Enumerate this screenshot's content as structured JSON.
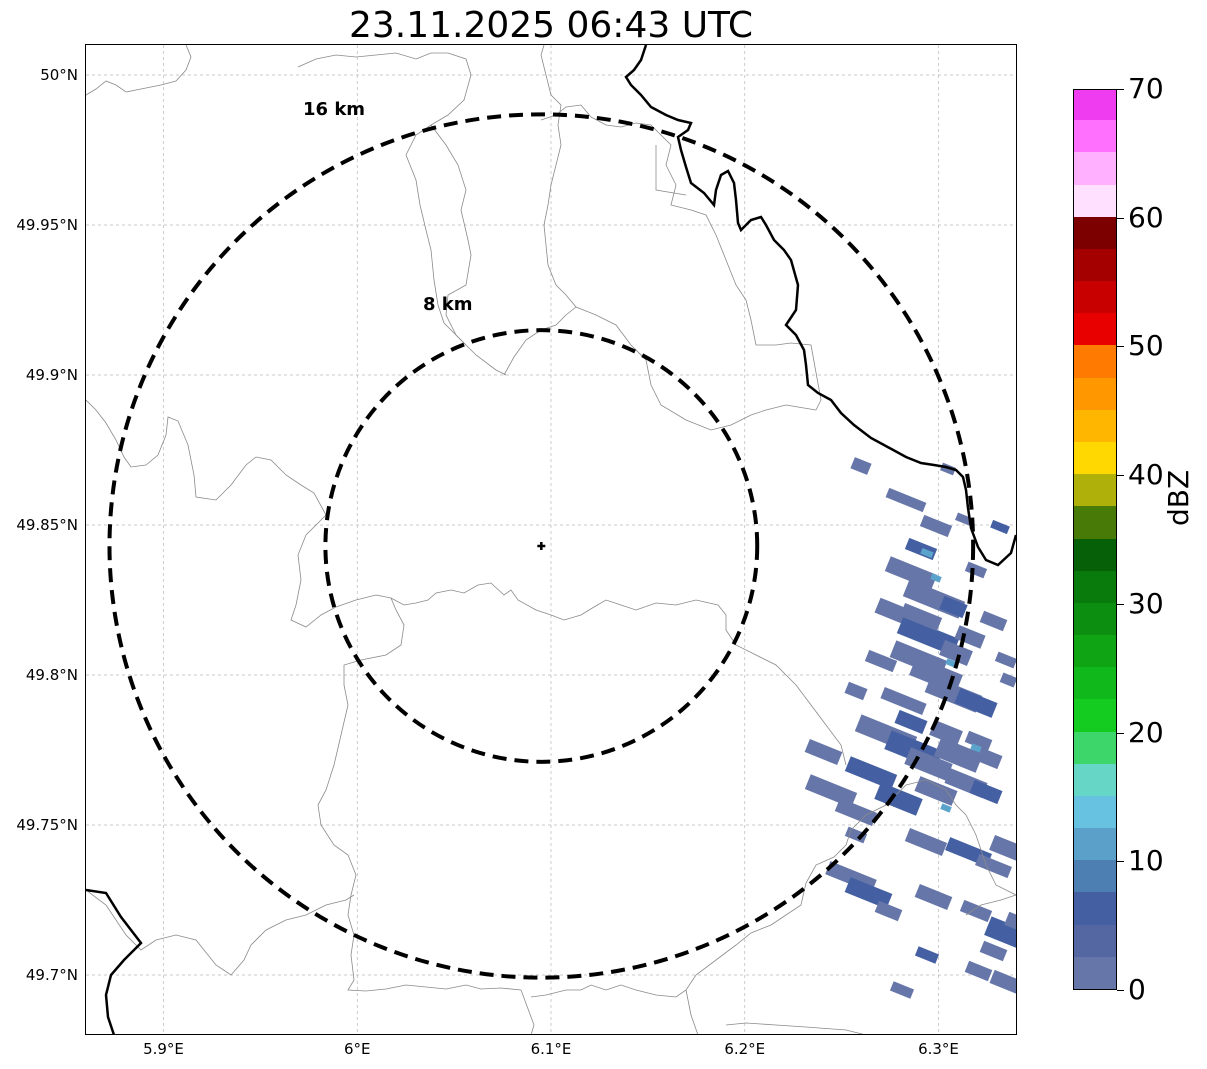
{
  "title": "23.11.2025 06:43 UTC",
  "map": {
    "lon_range": [
      5.86,
      6.34
    ],
    "lat_range": [
      49.68,
      50.01
    ],
    "lat_ticks": [
      {
        "value": 50.0,
        "label": "50°N"
      },
      {
        "value": 49.95,
        "label": "49.95°N"
      },
      {
        "value": 49.9,
        "label": "49.9°N"
      },
      {
        "value": 49.85,
        "label": "49.85°N"
      },
      {
        "value": 49.8,
        "label": "49.8°N"
      },
      {
        "value": 49.75,
        "label": "49.75°N"
      },
      {
        "value": 49.7,
        "label": "49.7°N"
      }
    ],
    "lon_ticks": [
      {
        "value": 5.9,
        "label": "5.9°E"
      },
      {
        "value": 6.0,
        "label": "6°E"
      },
      {
        "value": 6.1,
        "label": "6.1°E"
      },
      {
        "value": 6.2,
        "label": "6.2°E"
      },
      {
        "value": 6.3,
        "label": "6.3°E"
      }
    ],
    "gridlines": true,
    "radar_site": {
      "lon": 6.095,
      "lat": 49.843,
      "marker": "plus-icon"
    },
    "range_rings": [
      {
        "radius_km": 8,
        "label": "8 km"
      },
      {
        "radius_km": 16,
        "label": "16 km"
      }
    ],
    "echo_color_lightest": "#6676a8",
    "echo_color_darker": "#4560a2",
    "echo_color_cyan": "#5aa3cb"
  },
  "colorbar": {
    "label": "dBZ",
    "min": 0,
    "max": 70,
    "step": 2.5,
    "tick_labels": [
      {
        "value": 0,
        "label": "0"
      },
      {
        "value": 10,
        "label": "10"
      },
      {
        "value": 20,
        "label": "20"
      },
      {
        "value": 30,
        "label": "30"
      },
      {
        "value": 40,
        "label": "40"
      },
      {
        "value": 50,
        "label": "50"
      },
      {
        "value": 60,
        "label": "60"
      },
      {
        "value": 70,
        "label": "70"
      }
    ],
    "colors": [
      "#6676a8",
      "#5467a3",
      "#4560a2",
      "#4d7fb2",
      "#5aa0c8",
      "#66c2e0",
      "#66d6c6",
      "#3dd66a",
      "#14cc20",
      "#10b81c",
      "#0ea414",
      "#0c8e10",
      "#097a0c",
      "#066008",
      "#487a08",
      "#b0b00a",
      "#fed800",
      "#ffb600",
      "#ff9800",
      "#ff7a00",
      "#e80000",
      "#c80000",
      "#a40000",
      "#7c0000",
      "#ffe0ff",
      "#ffb0ff",
      "#ff70ff",
      "#f03cf0"
    ]
  }
}
